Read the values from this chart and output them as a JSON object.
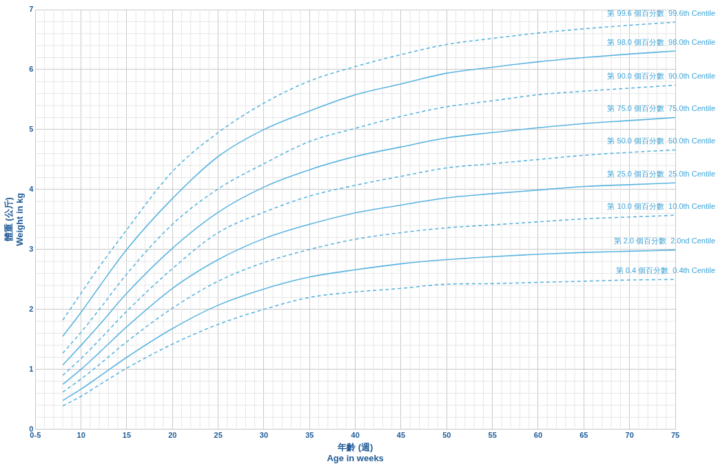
{
  "chart_data": {
    "type": "line",
    "xlabel": "年齡 (週)\nAge in weeks",
    "ylabel": "體重 (公斤)\nWeight in kg",
    "x": [
      8,
      10,
      12,
      15,
      20,
      25,
      30,
      35,
      40,
      45,
      50,
      55,
      60,
      65,
      70,
      75
    ],
    "xlim": [
      5,
      75
    ],
    "xticks": [
      {
        "value": 5,
        "label": "0-5"
      },
      10,
      15,
      20,
      25,
      30,
      35,
      40,
      45,
      50,
      55,
      60,
      65,
      70,
      75
    ],
    "ylim": [
      0,
      7
    ],
    "yticks": [
      0,
      1,
      2,
      3,
      4,
      5,
      6,
      7
    ],
    "grid": true,
    "legend": false,
    "marker": "none",
    "series": [
      {
        "name": "第 0.4 個百分數  0.4th Centile",
        "color": "#5ab4e0",
        "line_style": "dashed",
        "values": [
          0.39,
          0.55,
          0.74,
          1.02,
          1.42,
          1.75,
          2.0,
          2.2,
          2.29,
          2.35,
          2.42,
          2.43,
          2.45,
          2.47,
          2.49,
          2.5
        ]
      },
      {
        "name": "第 2.0 個百分數  2.0nd Centile",
        "color": "#5ab4e0",
        "line_style": "solid",
        "values": [
          0.48,
          0.67,
          0.88,
          1.2,
          1.68,
          2.07,
          2.34,
          2.54,
          2.66,
          2.76,
          2.83,
          2.88,
          2.92,
          2.95,
          2.97,
          2.99
        ]
      },
      {
        "name": "第 10.0 個百分數  10.0th Centile",
        "color": "#5ab4e0",
        "line_style": "dashed",
        "values": [
          0.62,
          0.84,
          1.08,
          1.46,
          2.02,
          2.47,
          2.78,
          3.0,
          3.17,
          3.28,
          3.36,
          3.41,
          3.46,
          3.51,
          3.54,
          3.57
        ]
      },
      {
        "name": "第 25.0 個百分數  25.0th Centile",
        "color": "#5ab4e0",
        "line_style": "solid",
        "values": [
          0.75,
          1.0,
          1.28,
          1.71,
          2.35,
          2.83,
          3.18,
          3.42,
          3.61,
          3.74,
          3.86,
          3.93,
          3.99,
          4.05,
          4.08,
          4.11
        ]
      },
      {
        "name": "第 50.0 個百分數  50.0th Centile",
        "color": "#5ab4e0",
        "line_style": "dashed",
        "values": [
          0.9,
          1.18,
          1.49,
          1.97,
          2.68,
          3.28,
          3.62,
          3.89,
          4.07,
          4.22,
          4.36,
          4.43,
          4.5,
          4.57,
          4.62,
          4.66
        ]
      },
      {
        "name": "第 75.0 個百分數  75.0th Centile",
        "color": "#5ab4e0",
        "line_style": "solid",
        "values": [
          1.07,
          1.4,
          1.74,
          2.27,
          3.02,
          3.62,
          4.04,
          4.33,
          4.55,
          4.71,
          4.86,
          4.95,
          5.03,
          5.1,
          5.15,
          5.2
        ]
      },
      {
        "name": "第 90.0 個百分數  90.0th Centile",
        "color": "#5ab4e0",
        "line_style": "dashed",
        "values": [
          1.27,
          1.62,
          2.0,
          2.59,
          3.42,
          4.01,
          4.43,
          4.8,
          5.02,
          5.22,
          5.38,
          5.48,
          5.58,
          5.64,
          5.69,
          5.74
        ]
      },
      {
        "name": "第 98.0 個百分數  98.0th Centile",
        "color": "#5ab4e0",
        "line_style": "solid",
        "values": [
          1.55,
          1.95,
          2.38,
          3.0,
          3.85,
          4.55,
          5.0,
          5.31,
          5.58,
          5.76,
          5.94,
          6.04,
          6.13,
          6.2,
          6.26,
          6.31
        ]
      },
      {
        "name": "第 99.6 個百分數  99.6th Centile",
        "color": "#5ab4e0",
        "line_style": "dashed",
        "values": [
          1.82,
          2.27,
          2.71,
          3.33,
          4.3,
          4.95,
          5.44,
          5.81,
          6.05,
          6.25,
          6.42,
          6.52,
          6.61,
          6.68,
          6.74,
          6.79
        ]
      }
    ]
  }
}
